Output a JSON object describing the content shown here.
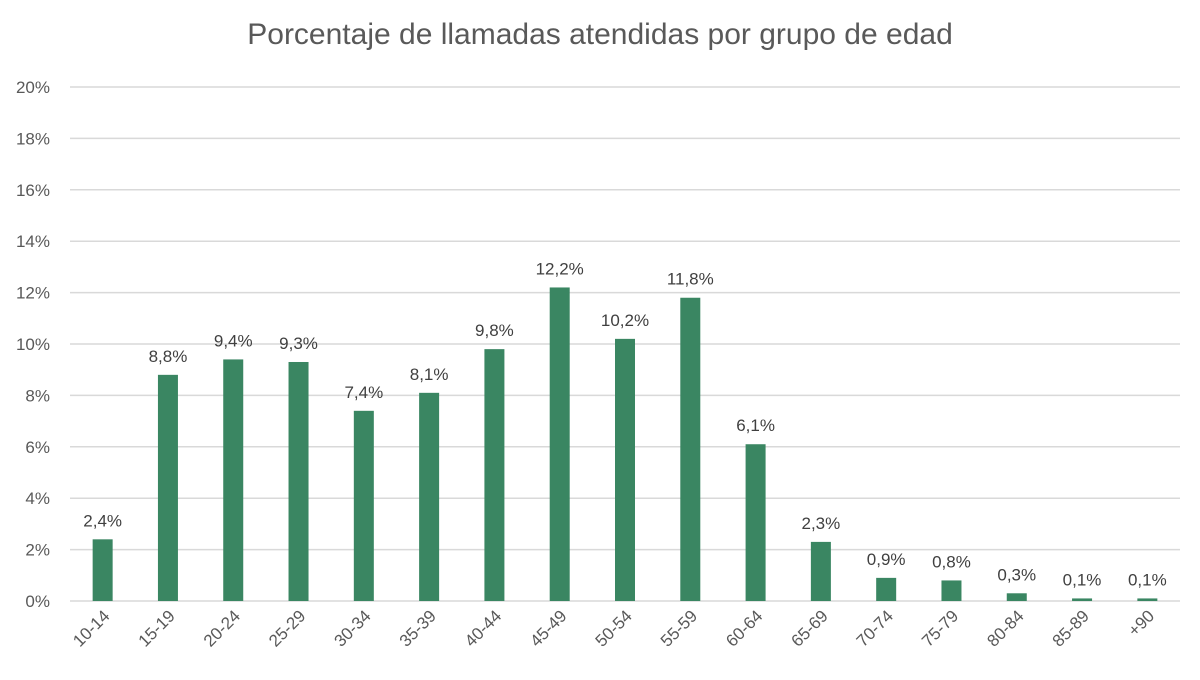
{
  "chart_data": {
    "type": "bar",
    "title": "Porcentaje de llamadas atendidas por grupo de edad",
    "categories": [
      "10-14",
      "15-19",
      "20-24",
      "25-29",
      "30-34",
      "35-39",
      "40-44",
      "45-49",
      "50-54",
      "55-59",
      "60-64",
      "65-69",
      "70-74",
      "75-79",
      "80-84",
      "85-89",
      "+90"
    ],
    "values": [
      2.4,
      8.8,
      9.4,
      9.3,
      7.4,
      8.1,
      9.8,
      12.2,
      10.2,
      11.8,
      6.1,
      2.3,
      0.9,
      0.8,
      0.3,
      0.1,
      0.1
    ],
    "data_labels": [
      "2,4%",
      "8,8%",
      "9,4%",
      "9,3%",
      "7,4%",
      "8,1%",
      "9,8%",
      "12,2%",
      "10,2%",
      "11,8%",
      "6,1%",
      "2,3%",
      "0,9%",
      "0,8%",
      "0,3%",
      "0,1%",
      "0,1%"
    ],
    "y_ticks": [
      0,
      2,
      4,
      6,
      8,
      10,
      12,
      14,
      16,
      18,
      20
    ],
    "y_tick_labels": [
      "0%",
      "2%",
      "4%",
      "6%",
      "8%",
      "10%",
      "12%",
      "14%",
      "16%",
      "18%",
      "20%"
    ],
    "ylim": [
      0,
      20
    ],
    "grid": true,
    "bar_color": "#3a8662",
    "grid_color": "#d9d9d9"
  }
}
